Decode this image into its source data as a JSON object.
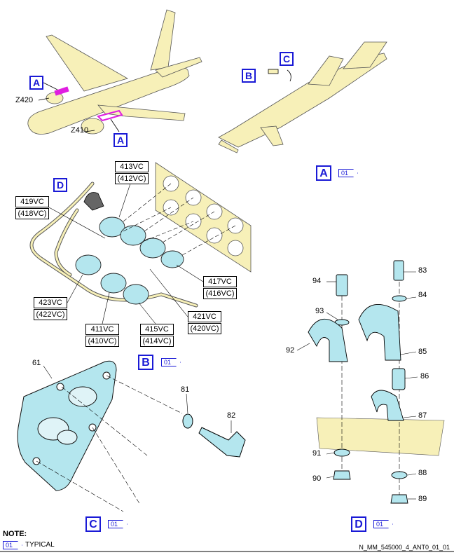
{
  "views": {
    "A": {
      "label": "A",
      "sheet_tag": "01"
    },
    "B": {
      "label": "B",
      "sheet_tag": "01"
    },
    "C": {
      "label": "C",
      "sheet_tag": "01"
    },
    "D": {
      "label": "D",
      "sheet_tag": "01"
    }
  },
  "aircraft_callouts": {
    "a_upper": "A",
    "a_lower": "A",
    "b": "B",
    "c": "C",
    "d": "D"
  },
  "zones": {
    "z420": "Z420",
    "z410": "Z410"
  },
  "connectors": {
    "c413": {
      "vc": "413VC",
      "alt": "(412VC)"
    },
    "c419": {
      "vc": "419VC",
      "alt": "(418VC)"
    },
    "c417": {
      "vc": "417VC",
      "alt": "(416VC)"
    },
    "c421": {
      "vc": "421VC",
      "alt": "(420VC)"
    },
    "c423": {
      "vc": "423VC",
      "alt": "(422VC)"
    },
    "c411": {
      "vc": "411VC",
      "alt": "(410VC)"
    },
    "c415": {
      "vc": "415VC",
      "alt": "(414VC)"
    }
  },
  "item_numbers": {
    "n61": "61",
    "n81": "81",
    "n82": "82",
    "n94": "94",
    "n93": "93",
    "n92": "92",
    "n83": "83",
    "n84": "84",
    "n85": "85",
    "n86": "86",
    "n87": "87",
    "n91": "91",
    "n90": "90",
    "n88": "88",
    "n89": "89"
  },
  "note": {
    "title": "NOTE:",
    "tag": "01",
    "text": "TYPICAL"
  },
  "footer": {
    "drawing_id": "N_MM_545000_4_ANT0_01_01"
  },
  "colors": {
    "fuselage": "#f7f0b8",
    "part_cyan": "#b4e6ee",
    "callout_blue": "#1a1ad6",
    "highlight_magenta": "#e01ee0"
  }
}
